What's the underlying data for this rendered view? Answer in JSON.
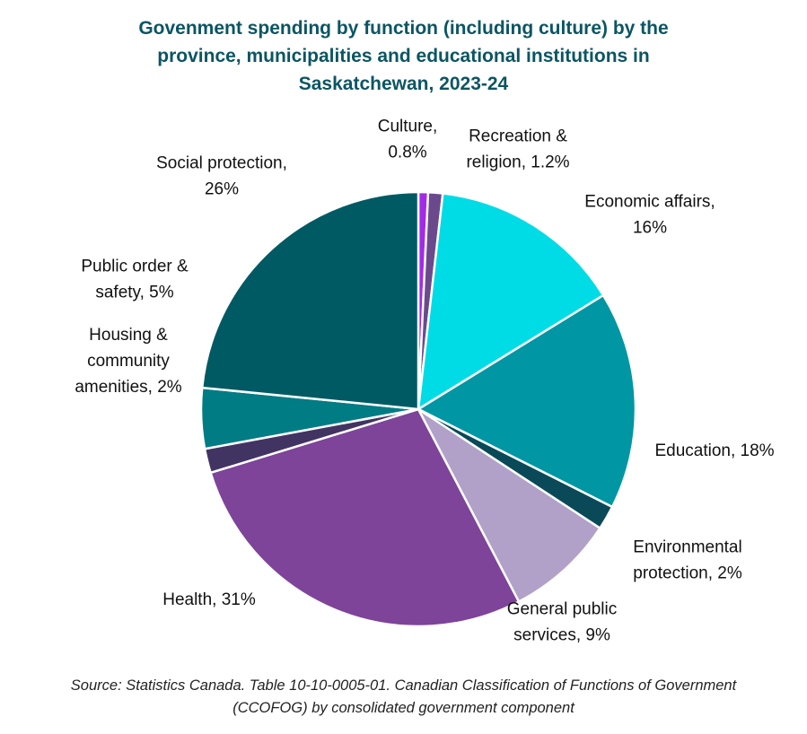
{
  "chart_data": {
    "type": "pie",
    "title_lines": [
      "Govenment spending by function (including culture) by the",
      "province, municipalities and educational institutions in",
      "Saskatchewan, 2023-24"
    ],
    "source_lines": [
      "Source: Statistics Canada. Table 10-10-0005-01. Canadian Classification of Functions of Government",
      "(CCOFOG) by consolidated government component"
    ],
    "start_angle_deg": 0,
    "direction": "clockwise",
    "slices": [
      {
        "name": "Culture",
        "value": 0.8,
        "color": "#a32ae6",
        "label_lines": [
          "Culture,",
          "0.8%"
        ]
      },
      {
        "name": "Recreation & religion",
        "value": 1.2,
        "color": "#6a4a8c",
        "label_lines": [
          "Recreation &",
          "religion, 1.2%"
        ]
      },
      {
        "name": "Economic affairs",
        "value": 16,
        "color": "#00dce6",
        "label_lines": [
          "Economic affairs,",
          "16%"
        ]
      },
      {
        "name": "Education",
        "value": 18,
        "color": "#0096a4",
        "label_lines": [
          "Education, 18%"
        ]
      },
      {
        "name": "Environmental protection",
        "value": 2,
        "color": "#0a4a58",
        "label_lines": [
          "Environmental",
          "protection, 2%"
        ]
      },
      {
        "name": "General public services",
        "value": 9,
        "color": "#b1a1c8",
        "label_lines": [
          "General public",
          "services, 9%"
        ]
      },
      {
        "name": "Health",
        "value": 31,
        "color": "#7d4499",
        "label_lines": [
          "Health, 31%"
        ]
      },
      {
        "name": "Housing & community amenities",
        "value": 2,
        "color": "#413463",
        "label_lines": [
          "Housing &",
          "community",
          "amenities, 2%"
        ]
      },
      {
        "name": "Public order & safety",
        "value": 5,
        "color": "#007c84",
        "label_lines": [
          "Public order &",
          "safety, 5%"
        ]
      },
      {
        "name": "Social protection",
        "value": 26,
        "color": "#005a63",
        "label_lines": [
          "Social protection,",
          "26%"
        ]
      }
    ]
  }
}
